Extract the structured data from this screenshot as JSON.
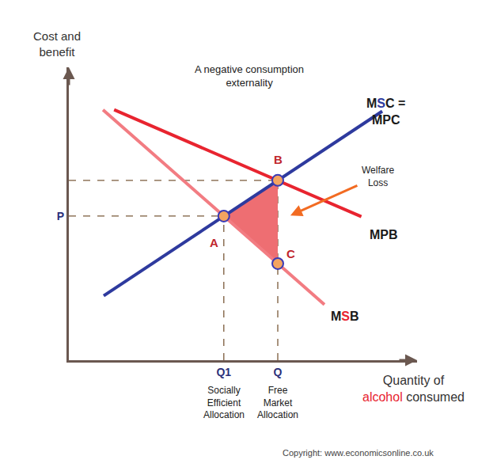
{
  "chart_data": {
    "type": "line",
    "title": [
      "A negative consumption",
      "externality"
    ],
    "ylabel": [
      "Cost and",
      "benefit"
    ],
    "xlabel": [
      [
        {
          "text": "Quantity of"
        }
      ],
      [
        {
          "text": "alcohol",
          "color": "#e8242f"
        },
        {
          "text": " consumed"
        }
      ]
    ],
    "xlim": [
      0,
      10
    ],
    "ylim": [
      0,
      10
    ],
    "xticks": [
      {
        "value": 4.45,
        "label": "Q1"
      },
      {
        "value": 6.0,
        "label": "Q"
      }
    ],
    "yticks": [
      {
        "value": 4.92,
        "label": "P"
      }
    ],
    "grid": false,
    "series": [
      {
        "label": [
          [
            {
              "text": "M"
            },
            {
              "text": "S",
              "color": "#2e3a9e"
            },
            {
              "text": "C ="
            }
          ],
          [
            {
              "text": "MPC"
            }
          ]
        ],
        "color": "#2e3a9e",
        "x": [
          1.0,
          9.0
        ],
        "values": [
          2.2,
          8.5
        ]
      },
      {
        "label": [
          [
            {
              "text": "MPB"
            }
          ]
        ],
        "color": "#e8242f",
        "x": [
          1.3,
          8.4
        ],
        "values": [
          8.55,
          4.9
        ]
      },
      {
        "label": [
          [
            {
              "text": "M"
            },
            {
              "text": "S",
              "color": "#e8242f"
            },
            {
              "text": "B"
            }
          ]
        ],
        "color": "#f27c82",
        "x": [
          0.98,
          7.34
        ],
        "values": [
          8.55,
          1.9
        ]
      }
    ],
    "points": [
      {
        "label": "A",
        "x": 4.45,
        "y": 4.92
      },
      {
        "label": "B",
        "x": 6.0,
        "y": 6.14
      },
      {
        "label": "C",
        "x": 6.0,
        "y": 3.3
      }
    ],
    "guides": [
      "A",
      "B"
    ],
    "welfare_loss": {
      "label": [
        "Welfare",
        "Loss"
      ],
      "vertices": [
        "A",
        "B",
        "C"
      ],
      "color": "#ee6e72"
    },
    "allocations": [
      {
        "tick": 0,
        "lines": [
          "Socially",
          "Efficient",
          "Allocation"
        ]
      },
      {
        "tick": 1,
        "lines": [
          "Free",
          "Market",
          "Allocation"
        ]
      }
    ],
    "source": "Copyright: www.economicsonline.co.uk"
  }
}
